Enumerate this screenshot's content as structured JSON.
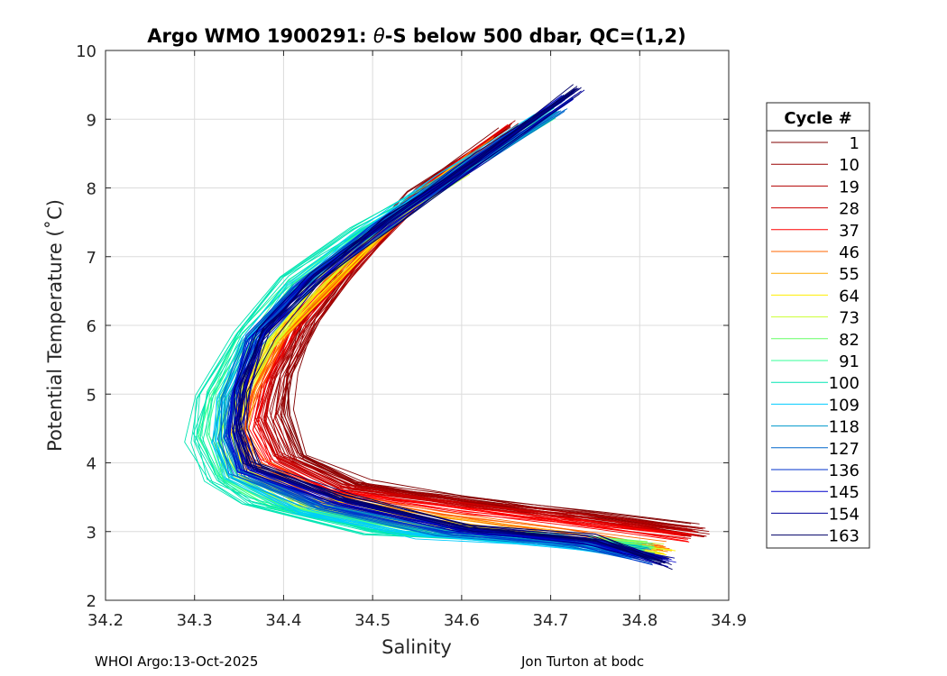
{
  "chart_data": {
    "type": "line",
    "title_prefix": "Argo WMO 1900291: ",
    "title_theta": "θ",
    "title_suffix": "-S below 500 dbar,  QC=(1,2)",
    "xlabel": "Salinity",
    "ylabel": "Potential Temperature (˚C)",
    "xlim": [
      34.2,
      34.9
    ],
    "ylim": [
      2,
      10
    ],
    "xticks": [
      34.2,
      34.3,
      34.4,
      34.5,
      34.6,
      34.7,
      34.8,
      34.9
    ],
    "xtick_labels": [
      "34.2",
      "34.3",
      "34.4",
      "34.5",
      "34.6",
      "34.7",
      "34.8",
      "34.9"
    ],
    "yticks": [
      2,
      3,
      4,
      5,
      6,
      7,
      8,
      9,
      10
    ],
    "ytick_labels": [
      "2",
      "3",
      "4",
      "5",
      "6",
      "7",
      "8",
      "9",
      "10"
    ],
    "grid": true,
    "legend_title": "Cycle #",
    "legend_position": "outside-right",
    "series": [
      {
        "name": "1",
        "color": "#800000",
        "points": [
          [
            34.65,
            8.85
          ],
          [
            34.55,
            7.95
          ],
          [
            34.47,
            6.85
          ],
          [
            34.425,
            6.05
          ],
          [
            34.405,
            5.3
          ],
          [
            34.4,
            4.7
          ],
          [
            34.42,
            4.1
          ],
          [
            34.49,
            3.7
          ],
          [
            34.62,
            3.45
          ],
          [
            34.75,
            3.25
          ],
          [
            34.86,
            3.05
          ]
        ]
      },
      {
        "name": "10",
        "color": "#990000",
        "points": [
          [
            34.66,
            8.9
          ],
          [
            34.56,
            8.0
          ],
          [
            34.48,
            6.9
          ],
          [
            34.43,
            6.05
          ],
          [
            34.4,
            5.3
          ],
          [
            34.39,
            4.7
          ],
          [
            34.41,
            4.1
          ],
          [
            34.48,
            3.68
          ],
          [
            34.62,
            3.42
          ],
          [
            34.75,
            3.22
          ],
          [
            34.87,
            3.0
          ]
        ]
      },
      {
        "name": "19",
        "color": "#b30000",
        "points": [
          [
            34.66,
            8.9
          ],
          [
            34.56,
            7.98
          ],
          [
            34.475,
            6.85
          ],
          [
            34.42,
            6.0
          ],
          [
            34.39,
            5.25
          ],
          [
            34.38,
            4.65
          ],
          [
            34.4,
            4.08
          ],
          [
            34.47,
            3.65
          ],
          [
            34.62,
            3.38
          ],
          [
            34.75,
            3.18
          ],
          [
            34.86,
            2.98
          ]
        ]
      },
      {
        "name": "28",
        "color": "#cc0000",
        "points": [
          [
            34.67,
            8.95
          ],
          [
            34.56,
            7.95
          ],
          [
            34.47,
            6.8
          ],
          [
            34.41,
            5.95
          ],
          [
            34.38,
            5.2
          ],
          [
            34.37,
            4.6
          ],
          [
            34.39,
            4.05
          ],
          [
            34.46,
            3.62
          ],
          [
            34.61,
            3.35
          ],
          [
            34.74,
            3.15
          ],
          [
            34.86,
            2.95
          ]
        ]
      },
      {
        "name": "37",
        "color": "#ff0000",
        "points": [
          [
            34.66,
            8.88
          ],
          [
            34.55,
            7.9
          ],
          [
            34.46,
            6.75
          ],
          [
            34.4,
            5.9
          ],
          [
            34.37,
            5.15
          ],
          [
            34.36,
            4.55
          ],
          [
            34.38,
            4.02
          ],
          [
            34.45,
            3.6
          ],
          [
            34.6,
            3.32
          ],
          [
            34.74,
            3.12
          ],
          [
            34.85,
            2.92
          ]
        ]
      },
      {
        "name": "46",
        "color": "#ff6600",
        "points": [
          [
            34.64,
            8.7
          ],
          [
            34.54,
            7.75
          ],
          [
            34.46,
            6.65
          ],
          [
            34.4,
            5.85
          ],
          [
            34.37,
            5.1
          ],
          [
            34.355,
            4.5
          ],
          [
            34.37,
            3.98
          ],
          [
            34.44,
            3.55
          ],
          [
            34.58,
            3.22
          ],
          [
            34.72,
            3.0
          ],
          [
            34.83,
            2.78
          ]
        ]
      },
      {
        "name": "55",
        "color": "#ffaa00",
        "points": [
          [
            34.62,
            8.5
          ],
          [
            34.53,
            7.6
          ],
          [
            34.45,
            6.55
          ],
          [
            34.39,
            5.75
          ],
          [
            34.36,
            5.05
          ],
          [
            34.35,
            4.45
          ],
          [
            34.36,
            3.92
          ],
          [
            34.43,
            3.5
          ],
          [
            34.57,
            3.15
          ],
          [
            34.71,
            2.95
          ],
          [
            34.83,
            2.7
          ]
        ]
      },
      {
        "name": "64",
        "color": "#ffee00",
        "points": [
          [
            34.6,
            8.3
          ],
          [
            34.52,
            7.5
          ],
          [
            34.44,
            6.5
          ],
          [
            34.385,
            5.7
          ],
          [
            34.355,
            5.0
          ],
          [
            34.345,
            4.4
          ],
          [
            34.355,
            3.88
          ],
          [
            34.42,
            3.45
          ],
          [
            34.56,
            3.1
          ],
          [
            34.7,
            2.9
          ],
          [
            34.83,
            2.68
          ]
        ]
      },
      {
        "name": "73",
        "color": "#ccff33",
        "points": [
          [
            34.6,
            8.2
          ],
          [
            34.51,
            7.45
          ],
          [
            34.43,
            6.5
          ],
          [
            34.38,
            5.7
          ],
          [
            34.35,
            5.0
          ],
          [
            34.34,
            4.4
          ],
          [
            34.35,
            3.85
          ],
          [
            34.41,
            3.42
          ],
          [
            34.55,
            3.08
          ],
          [
            34.7,
            2.92
          ],
          [
            34.82,
            2.75
          ]
        ]
      },
      {
        "name": "82",
        "color": "#66ff66",
        "points": [
          [
            34.69,
            9.0
          ],
          [
            34.58,
            8.1
          ],
          [
            34.49,
            7.3
          ],
          [
            34.41,
            6.5
          ],
          [
            34.36,
            5.7
          ],
          [
            34.33,
            4.9
          ],
          [
            34.325,
            4.3
          ],
          [
            34.34,
            3.75
          ],
          [
            34.4,
            3.35
          ],
          [
            34.54,
            3.02
          ],
          [
            34.7,
            2.92
          ],
          [
            34.81,
            2.8
          ]
        ]
      },
      {
        "name": "91",
        "color": "#33ff99",
        "points": [
          [
            34.7,
            9.05
          ],
          [
            34.59,
            8.15
          ],
          [
            34.49,
            7.35
          ],
          [
            34.41,
            6.6
          ],
          [
            34.355,
            5.8
          ],
          [
            34.32,
            5.0
          ],
          [
            34.31,
            4.4
          ],
          [
            34.33,
            3.8
          ],
          [
            34.39,
            3.38
          ],
          [
            34.53,
            3.0
          ],
          [
            34.69,
            2.88
          ],
          [
            34.81,
            2.78
          ]
        ]
      },
      {
        "name": "100",
        "color": "#00e6b3",
        "points": [
          [
            34.7,
            9.1
          ],
          [
            34.59,
            8.2
          ],
          [
            34.48,
            7.4
          ],
          [
            34.4,
            6.7
          ],
          [
            34.35,
            5.9
          ],
          [
            34.31,
            5.0
          ],
          [
            34.3,
            4.35
          ],
          [
            34.32,
            3.75
          ],
          [
            34.36,
            3.42
          ],
          [
            34.5,
            3.0
          ],
          [
            34.68,
            2.88
          ],
          [
            34.8,
            2.75
          ]
        ]
      },
      {
        "name": "109",
        "color": "#00ccff",
        "points": [
          [
            34.69,
            9.05
          ],
          [
            34.58,
            8.15
          ],
          [
            34.48,
            7.3
          ],
          [
            34.41,
            6.55
          ],
          [
            34.36,
            5.75
          ],
          [
            34.33,
            4.95
          ],
          [
            34.325,
            4.3
          ],
          [
            34.34,
            3.8
          ],
          [
            34.42,
            3.3
          ],
          [
            34.55,
            2.95
          ],
          [
            34.7,
            2.82
          ],
          [
            34.8,
            2.65
          ]
        ]
      },
      {
        "name": "118",
        "color": "#0099cc",
        "points": [
          [
            34.7,
            9.1
          ],
          [
            34.59,
            8.2
          ],
          [
            34.49,
            7.3
          ],
          [
            34.41,
            6.55
          ],
          [
            34.36,
            5.75
          ],
          [
            34.335,
            4.95
          ],
          [
            34.33,
            4.35
          ],
          [
            34.345,
            3.85
          ],
          [
            34.43,
            3.38
          ],
          [
            34.57,
            3.02
          ],
          [
            34.71,
            2.88
          ],
          [
            34.81,
            2.7
          ]
        ]
      },
      {
        "name": "127",
        "color": "#0066cc",
        "points": [
          [
            34.71,
            9.2
          ],
          [
            34.6,
            8.3
          ],
          [
            34.5,
            7.35
          ],
          [
            34.42,
            6.55
          ],
          [
            34.365,
            5.75
          ],
          [
            34.34,
            4.95
          ],
          [
            34.335,
            4.35
          ],
          [
            34.35,
            3.85
          ],
          [
            34.44,
            3.38
          ],
          [
            34.58,
            3.0
          ],
          [
            34.72,
            2.85
          ],
          [
            34.82,
            2.6
          ]
        ]
      },
      {
        "name": "136",
        "color": "#0033cc",
        "points": [
          [
            34.72,
            9.3
          ],
          [
            34.61,
            8.35
          ],
          [
            34.5,
            7.4
          ],
          [
            34.42,
            6.6
          ],
          [
            34.365,
            5.8
          ],
          [
            34.345,
            5.0
          ],
          [
            34.34,
            4.4
          ],
          [
            34.355,
            3.88
          ],
          [
            34.45,
            3.4
          ],
          [
            34.59,
            3.02
          ],
          [
            34.73,
            2.85
          ],
          [
            34.82,
            2.58
          ]
        ]
      },
      {
        "name": "145",
        "color": "#0000cc",
        "points": [
          [
            34.72,
            9.35
          ],
          [
            34.61,
            8.35
          ],
          [
            34.51,
            7.42
          ],
          [
            34.43,
            6.6
          ],
          [
            34.37,
            5.82
          ],
          [
            34.35,
            5.02
          ],
          [
            34.345,
            4.42
          ],
          [
            34.36,
            3.9
          ],
          [
            34.46,
            3.42
          ],
          [
            34.6,
            3.02
          ],
          [
            34.74,
            2.85
          ],
          [
            34.83,
            2.55
          ]
        ]
      },
      {
        "name": "154",
        "color": "#000099",
        "points": [
          [
            34.73,
            9.4
          ],
          [
            34.62,
            8.4
          ],
          [
            34.51,
            7.45
          ],
          [
            34.43,
            6.65
          ],
          [
            34.375,
            5.85
          ],
          [
            34.35,
            5.05
          ],
          [
            34.345,
            4.45
          ],
          [
            34.36,
            3.92
          ],
          [
            34.46,
            3.44
          ],
          [
            34.6,
            3.04
          ],
          [
            34.74,
            2.86
          ],
          [
            34.83,
            2.55
          ]
        ]
      },
      {
        "name": "163",
        "color": "#000066",
        "points": [
          [
            34.73,
            9.42
          ],
          [
            34.62,
            8.42
          ],
          [
            34.52,
            7.5
          ],
          [
            34.44,
            6.7
          ],
          [
            34.38,
            5.9
          ],
          [
            34.355,
            5.1
          ],
          [
            34.35,
            4.5
          ],
          [
            34.365,
            3.95
          ],
          [
            34.47,
            3.46
          ],
          [
            34.61,
            3.05
          ],
          [
            34.75,
            2.88
          ],
          [
            34.83,
            2.52
          ]
        ]
      }
    ]
  },
  "footer": {
    "left": "WHOI Argo:13-Oct-2025",
    "right": "Jon Turton at bodc"
  }
}
